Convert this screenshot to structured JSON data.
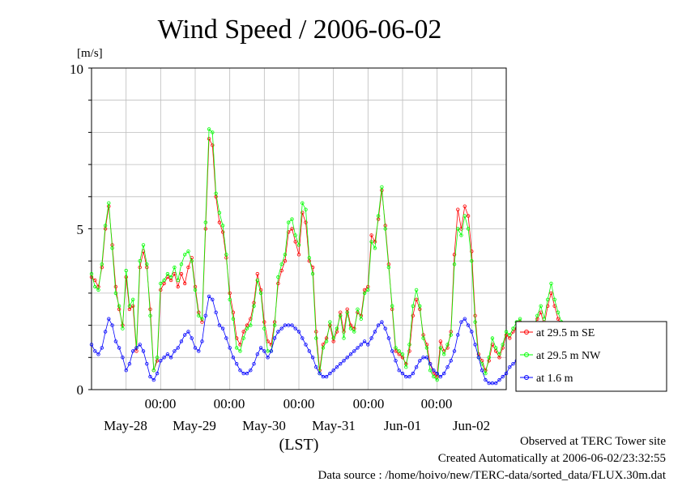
{
  "chart_data": {
    "type": "line",
    "title": "Wind Speed / 2006-06-02",
    "ylabel": "[m/s]",
    "xlabel": "(LST)",
    "ylim": [
      0,
      10
    ],
    "y_ticks": [
      "0",
      "5",
      "10"
    ],
    "x_range": [
      "2006-05-27T00:00",
      "2006-06-03T00:00"
    ],
    "x_time_labels": [
      "00:00",
      "00:00",
      "00:00",
      "00:00",
      "00:00",
      "00:00"
    ],
    "x_date_labels": [
      "May-28",
      "May-29",
      "May-30",
      "May-31",
      "Jun-01",
      "Jun-02"
    ],
    "grid": true,
    "legend_position": "right",
    "series": [
      {
        "name": "at 29.5 m SE",
        "color": "#ff0000",
        "marker": "circle",
        "values": [
          3.5,
          3.4,
          3.2,
          3.8,
          5.0,
          5.7,
          4.5,
          3.2,
          2.5,
          2.0,
          3.5,
          2.5,
          2.6,
          1.2,
          3.8,
          4.3,
          3.8,
          2.5,
          0.6,
          0.9,
          3.1,
          3.3,
          3.5,
          3.4,
          3.6,
          3.2,
          3.6,
          3.3,
          3.8,
          4.1,
          3.2,
          2.4,
          2.1,
          5.0,
          7.8,
          7.6,
          6.0,
          5.2,
          4.9,
          4.1,
          3.0,
          2.4,
          1.6,
          1.4,
          1.8,
          2.0,
          2.2,
          2.7,
          3.6,
          3.1,
          2.1,
          1.5,
          1.4,
          2.1,
          3.3,
          3.7,
          4.0,
          4.9,
          5.0,
          4.6,
          4.2,
          5.5,
          5.2,
          4.0,
          3.8,
          1.8,
          0.6,
          1.4,
          1.6,
          2.0,
          1.5,
          1.8,
          2.4,
          1.8,
          2.5,
          2.0,
          1.9,
          2.4,
          2.3,
          3.1,
          3.2,
          4.8,
          4.6,
          5.3,
          6.2,
          5.1,
          3.9,
          2.5,
          1.2,
          1.1,
          1.0,
          0.8,
          1.2,
          2.3,
          2.8,
          2.5,
          1.7,
          1.4,
          0.8,
          0.5,
          0.4,
          1.5,
          1.2,
          1.3,
          1.8,
          4.2,
          5.6,
          5.0,
          5.7,
          5.4,
          4.3,
          2.3,
          1.1,
          0.9,
          0.6,
          0.9,
          1.4,
          1.2,
          1.0,
          1.3,
          1.7,
          1.6,
          1.8,
          1.9,
          2.1,
          2.0,
          1.8,
          1.6,
          1.8,
          2.2,
          2.4,
          2.0,
          2.6,
          3.0,
          2.6,
          2.2,
          2.0,
          1.9,
          1.8,
          1.4,
          0.9
        ],
        "x_start_day": 27.0,
        "x_step_day": 0.05
      },
      {
        "name": "at 29.5 m NW",
        "color": "#00ff00",
        "marker": "circle",
        "values": [
          3.6,
          3.2,
          3.1,
          3.9,
          5.1,
          5.8,
          4.4,
          3.0,
          2.6,
          1.9,
          3.7,
          2.6,
          2.8,
          1.3,
          4.0,
          4.5,
          3.9,
          2.3,
          0.6,
          1.0,
          3.3,
          3.4,
          3.6,
          3.5,
          3.8,
          3.4,
          3.9,
          4.2,
          4.3,
          4.0,
          3.1,
          2.3,
          2.2,
          5.2,
          8.1,
          8.0,
          6.1,
          5.5,
          5.1,
          4.2,
          2.8,
          2.2,
          1.3,
          1.2,
          1.6,
          1.9,
          2.0,
          2.6,
          3.4,
          3.0,
          1.9,
          1.2,
          1.2,
          2.0,
          3.5,
          3.9,
          4.2,
          5.2,
          5.3,
          4.8,
          4.5,
          5.8,
          5.6,
          4.1,
          3.6,
          1.6,
          0.5,
          1.3,
          1.5,
          2.1,
          1.6,
          1.9,
          2.3,
          1.6,
          2.4,
          1.9,
          1.8,
          2.5,
          2.2,
          3.0,
          3.1,
          4.6,
          4.4,
          5.4,
          6.3,
          5.0,
          3.8,
          2.6,
          1.3,
          1.2,
          1.1,
          0.7,
          1.4,
          2.6,
          3.1,
          2.6,
          1.6,
          1.3,
          0.6,
          0.4,
          0.3,
          1.3,
          1.1,
          1.4,
          1.7,
          3.9,
          5.0,
          4.8,
          5.4,
          5.0,
          4.0,
          2.1,
          1.0,
          0.8,
          0.5,
          1.0,
          1.6,
          1.3,
          1.1,
          1.4,
          1.8,
          1.7,
          1.9,
          2.1,
          2.2,
          1.9,
          1.7,
          1.5,
          1.9,
          2.3,
          2.6,
          2.2,
          2.8,
          3.3,
          2.8,
          2.4,
          2.1,
          1.8,
          1.7,
          1.2,
          0.8
        ],
        "x_start_day": 27.0,
        "x_step_day": 0.05
      },
      {
        "name": "at 1.6 m",
        "color": "#0000ff",
        "marker": "circle",
        "values": [
          1.4,
          1.2,
          1.1,
          1.3,
          1.8,
          2.2,
          2.0,
          1.5,
          1.3,
          1.0,
          0.6,
          0.8,
          1.2,
          1.3,
          1.4,
          1.2,
          0.8,
          0.4,
          0.3,
          0.5,
          0.9,
          1.0,
          1.1,
          1.0,
          1.2,
          1.3,
          1.5,
          1.7,
          1.8,
          1.6,
          1.3,
          1.2,
          1.5,
          2.3,
          2.9,
          2.8,
          2.4,
          2.0,
          1.9,
          1.6,
          1.3,
          1.0,
          0.8,
          0.6,
          0.5,
          0.5,
          0.6,
          0.8,
          1.1,
          1.3,
          1.2,
          1.0,
          1.2,
          1.6,
          1.8,
          1.9,
          2.0,
          2.0,
          2.0,
          1.9,
          1.8,
          1.6,
          1.4,
          1.2,
          1.0,
          0.7,
          0.5,
          0.4,
          0.4,
          0.5,
          0.6,
          0.7,
          0.8,
          0.9,
          1.0,
          1.1,
          1.2,
          1.3,
          1.4,
          1.5,
          1.4,
          1.6,
          1.8,
          2.0,
          2.1,
          1.9,
          1.6,
          1.2,
          0.9,
          0.6,
          0.5,
          0.4,
          0.4,
          0.5,
          0.7,
          0.9,
          1.0,
          1.0,
          0.8,
          0.6,
          0.5,
          0.4,
          0.5,
          0.7,
          0.9,
          1.2,
          1.7,
          2.1,
          2.2,
          2.0,
          1.8,
          1.4,
          1.0,
          0.6,
          0.3,
          0.2,
          0.2,
          0.2,
          0.3,
          0.4,
          0.5,
          0.7,
          0.8,
          0.9,
          1.0,
          1.0,
          1.1,
          1.0,
          0.9,
          0.8,
          0.9,
          1.0,
          1.1,
          1.2,
          1.3,
          1.2,
          1.0,
          0.8,
          0.6,
          0.5,
          0.4
        ],
        "x_start_day": 27.0,
        "x_step_day": 0.05
      }
    ],
    "footer": [
      "Observed at TERC Tower site",
      "Created Automatically at 2006-06-02/23:32:55",
      "Data source : /home/hoivo/new/TERC-data/sorted_data/FLUX.30m.dat"
    ]
  }
}
